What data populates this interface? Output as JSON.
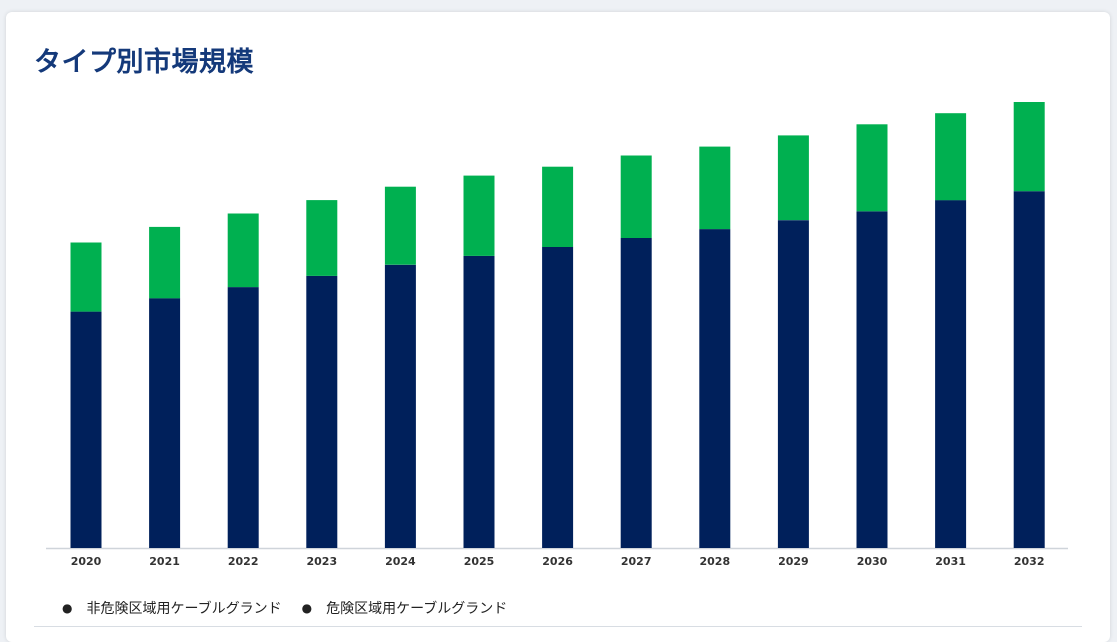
{
  "card": {
    "title": "タイプ別市場規模"
  },
  "colors": {
    "non_hazardous": "#00205b",
    "hazardous": "#00b050",
    "axis": "#cfd4da",
    "title": "#14397a"
  },
  "chart_data": {
    "type": "bar",
    "stacked": true,
    "title": "",
    "xlabel": "",
    "ylabel": "",
    "ylim": [
      0,
      100
    ],
    "grid": false,
    "legend_position": "bottom-left",
    "categories": [
      "2020",
      "2021",
      "2022",
      "2023",
      "2024",
      "2025",
      "2026",
      "2027",
      "2028",
      "2029",
      "2030",
      "2031",
      "2032"
    ],
    "series": [
      {
        "name": "非危険区域用ケーブルグランド",
        "color": "#00205b",
        "values": [
          53.0,
          56.0,
          58.5,
          61.0,
          63.5,
          65.5,
          67.5,
          69.5,
          71.5,
          73.5,
          75.5,
          78.0,
          80.0
        ]
      },
      {
        "name": "危険区域用ケーブルグランド",
        "color": "#00b050",
        "values": [
          15.5,
          16.0,
          16.5,
          17.0,
          17.5,
          18.0,
          18.0,
          18.5,
          18.5,
          19.0,
          19.5,
          19.5,
          20.0
        ]
      }
    ]
  }
}
